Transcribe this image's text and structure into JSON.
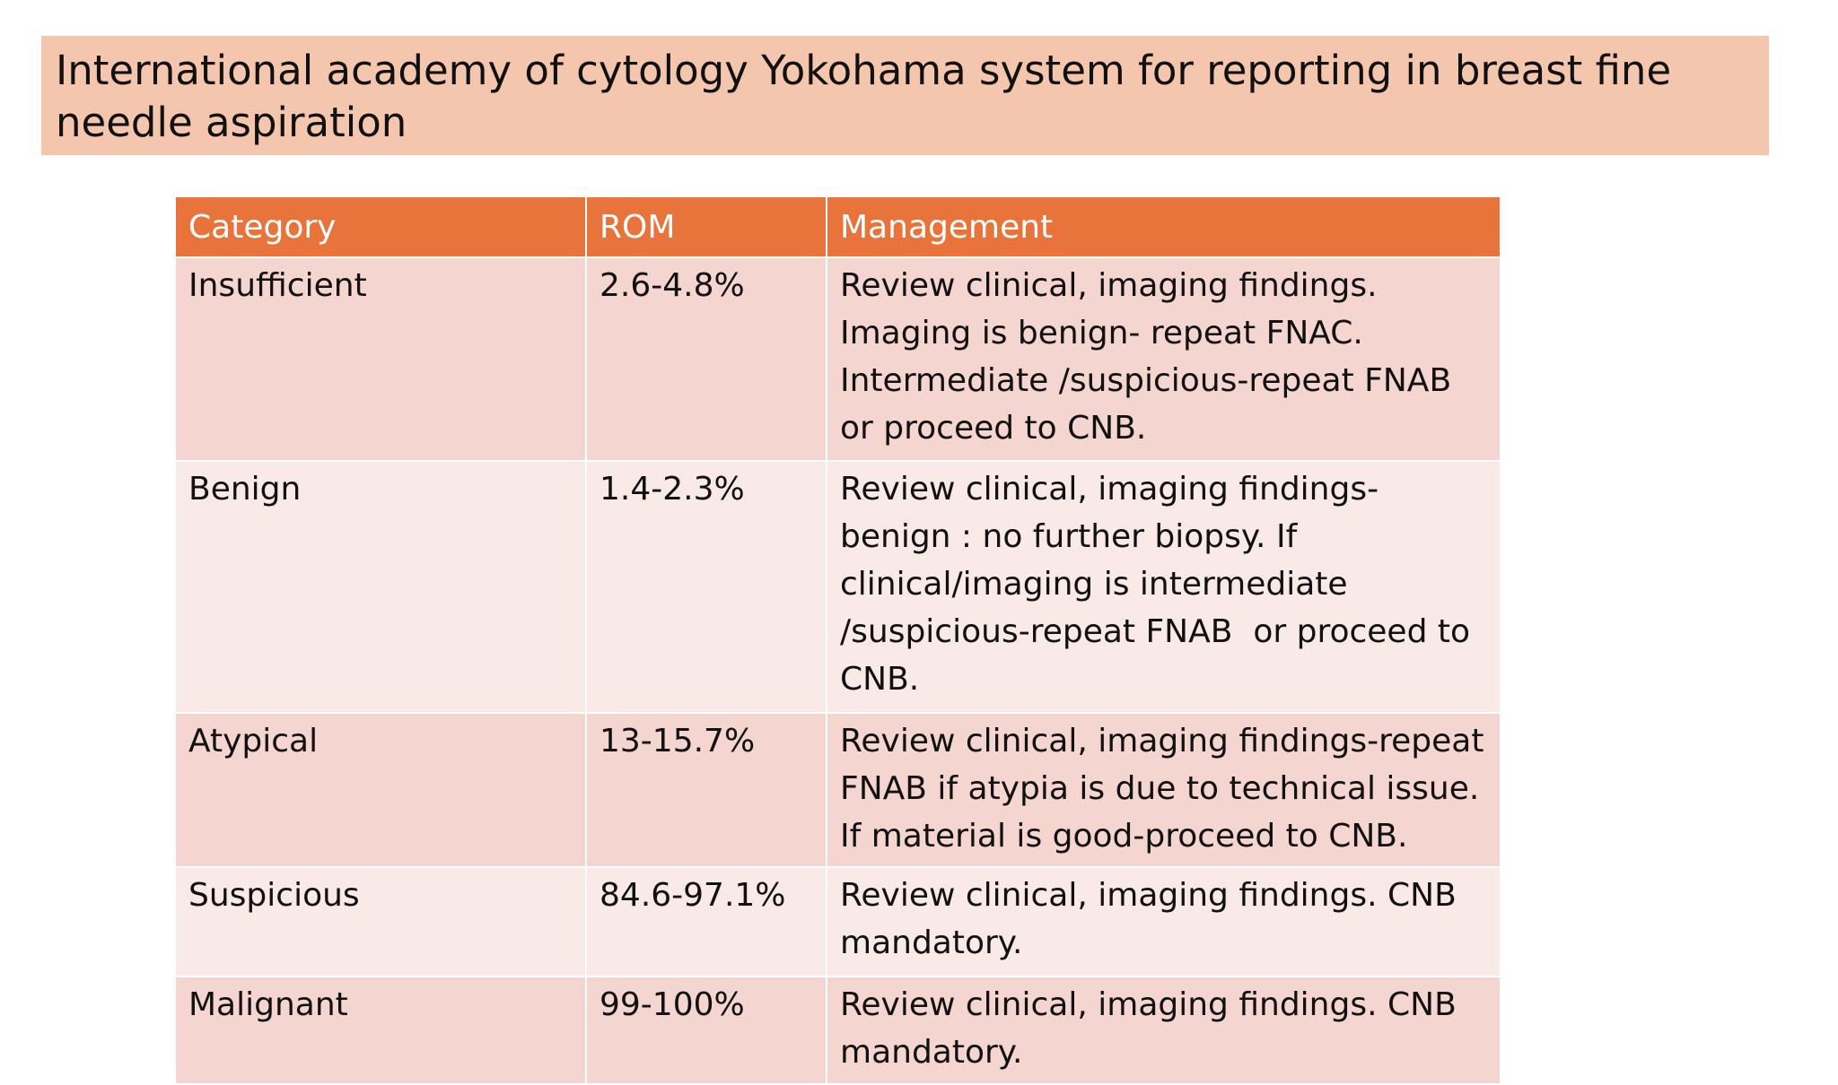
{
  "title": "International academy of cytology Yokohama system for reporting in breast fine needle aspiration",
  "table": {
    "header": [
      "Category",
      "ROM",
      "Management"
    ],
    "rows": [
      [
        "Insufficient",
        "2.6-4.8%",
        "Review clinical, imaging findings. Imaging is benign- repeat FNAC. Intermediate /suspicious-repeat FNAB or proceed to CNB."
      ],
      [
        "Benign",
        "1.4-2.3%",
        "Review clinical, imaging findings- benign : no further biopsy. If clinical/imaging is intermediate /suspicious-repeat FNAB  or proceed to CNB."
      ],
      [
        "Atypical",
        "13-15.7%",
        "Review clinical, imaging findings-repeat FNAB if atypia is due to technical issue. If material is good-proceed to CNB."
      ],
      [
        "Suspicious",
        "84.6-97.1%",
        "Review clinical, imaging findings. CNB mandatory."
      ],
      [
        "Malignant",
        "99-100%",
        "Review clinical, imaging findings. CNB mandatory."
      ]
    ]
  }
}
